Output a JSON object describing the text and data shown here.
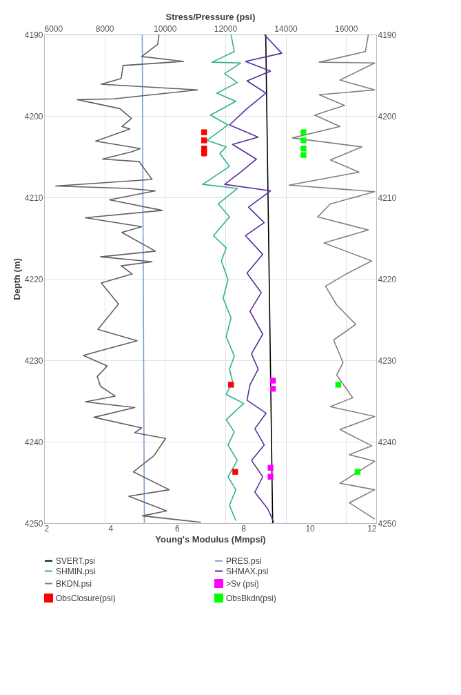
{
  "chart_data": {
    "type": "line",
    "xlabel": "Young's Modulus (Mmpsi)",
    "ylabel": "Depth (m)",
    "x2label": "Stress/Pressure (psi)",
    "xlim": [
      2,
      12
    ],
    "xticks": [
      2,
      4,
      6,
      8,
      10,
      12
    ],
    "x2lim": [
      6000,
      17000
    ],
    "x2ticks": [
      6000,
      8000,
      10000,
      12000,
      14000,
      16000
    ],
    "ylim": [
      4250,
      4190
    ],
    "yticks": [
      4190,
      4200,
      4210,
      4220,
      4230,
      4240,
      4250
    ],
    "y2lim": [
      4250,
      4190
    ],
    "y2ticks": [
      4190,
      4200,
      4210,
      4220,
      4230,
      4240,
      4250
    ],
    "grid": true,
    "legend": "bottom",
    "series": [
      {
        "name": "SVERT.psi",
        "axis": "x2",
        "color": "#000000",
        "x": [
          13340,
          13570
        ],
        "values": [
          4190,
          4250
        ]
      },
      {
        "name": "PRES.psi",
        "axis": "x2",
        "color": "#7f9fc8",
        "x": [
          9250,
          9320
        ],
        "values": [
          4190,
          4250
        ]
      },
      {
        "name": "SHMIN.psi",
        "axis": "x2",
        "color": "#2db38a",
        "x": [
          12190,
          12300,
          11560,
          12510,
          11980,
          12400,
          11720,
          12350,
          11510,
          12090,
          11400,
          12030,
          11820,
          12140,
          11250,
          12400,
          11770,
          12140,
          11610,
          12030,
          11870,
          12090,
          11930,
          12190,
          12030,
          12300,
          12140,
          12240,
          12030,
          12610,
          12030,
          12300,
          12090,
          12400,
          12090,
          12350,
          12140,
          12350
        ],
        "values": [
          4190,
          4192.1,
          4193.4,
          4193.5,
          4194.8,
          4195.9,
          4197.2,
          4198.2,
          4199.9,
          4201.1,
          4203,
          4203.8,
          4204.6,
          4206.2,
          4208.4,
          4208.9,
          4210.8,
          4212.4,
          4214.7,
          4216.2,
          4217.8,
          4220.1,
          4222.4,
          4224.8,
          4227.1,
          4229.5,
          4231.1,
          4232.6,
          4234.2,
          4235.3,
          4237.3,
          4238.8,
          4240.4,
          4242.3,
          4244.3,
          4245.9,
          4247.8,
          4249.7
        ]
      },
      {
        "name": "SHMAX.psi",
        "axis": "x2",
        "color": "#5b2a9e",
        "x": [
          13290,
          13870,
          12670,
          13500,
          12720,
          13350,
          12720,
          12140,
          13090,
          12240,
          13030,
          12510,
          11980,
          13500,
          12770,
          13290,
          12670,
          13240,
          12720,
          13190,
          12820,
          13240,
          12870,
          13090,
          12820,
          12720,
          13350,
          12980,
          13290,
          12870,
          13240,
          12980,
          13400,
          13610
        ],
        "values": [
          4190,
          4192.3,
          4193.3,
          4194.5,
          4195.7,
          4197.2,
          4199.1,
          4201.1,
          4202.6,
          4203.5,
          4205.3,
          4206.9,
          4208.4,
          4209.2,
          4211.2,
          4213.1,
          4214.7,
          4217,
          4219.3,
          4221.7,
          4224,
          4226.8,
          4229.2,
          4231.1,
          4233,
          4234.9,
          4236.5,
          4238.4,
          4240.4,
          4242.3,
          4244.3,
          4246.2,
          4248.2,
          4249.9
        ]
      },
      {
        "name": "BKDN.psi",
        "axis": "x2",
        "color": "#808080",
        "x": [
          16740,
          16640,
          15110,
          16950,
          15800,
          16950,
          15110,
          15950,
          14960,
          15800,
          14220,
          16530,
          15480,
          16430,
          14110,
          16950,
          15480,
          15060,
          16740,
          15270,
          16850,
          16010,
          15320,
          15690,
          16320,
          15590,
          15900,
          15690,
          16220,
          15480,
          16950,
          15800,
          16850,
          16110,
          16950,
          15800,
          16950,
          16110,
          16950
        ],
        "values": [
          4190,
          4192.1,
          4193.4,
          4193.5,
          4195.6,
          4196.8,
          4197.4,
          4198.7,
          4199.9,
          4201.3,
          4202.7,
          4203.8,
          4205.4,
          4206.9,
          4208.5,
          4209.3,
          4210.8,
          4212.4,
          4214,
          4215.6,
          4217.8,
          4219.4,
          4220.9,
          4223.2,
          4225.6,
          4227.5,
          4230.3,
          4231.8,
          4234.6,
          4235.7,
          4236.9,
          4238.5,
          4240.5,
          4241.6,
          4242.4,
          4245.1,
          4245.9,
          4247.5,
          4249.5
        ]
      },
      {
        "name": ">Sv (psi)",
        "type": "scatter",
        "marker": "square",
        "axis": "x2",
        "color": "#ff00ff",
        "x": [
          13580,
          13580,
          13500,
          13500
        ],
        "values": [
          4232.5,
          4233.5,
          4243.2,
          4244.3
        ]
      },
      {
        "name": "ObsClosure(psi)",
        "type": "scatter",
        "marker": "square",
        "axis": "x2",
        "color": "#ff0000",
        "x": [
          11300,
          11300,
          11300,
          11300,
          12190,
          12330
        ],
        "values": [
          4202,
          4203,
          4204,
          4204.6,
          4233,
          4243.7
        ]
      },
      {
        "name": "ObsBkdn(psi)",
        "type": "scatter",
        "marker": "square",
        "axis": "x2",
        "color": "#00ff00",
        "x": [
          14590,
          14590,
          14590,
          14590,
          15740,
          16380
        ],
        "values": [
          4202,
          4203,
          4204,
          4204.8,
          4233,
          4243.7
        ]
      },
      {
        "color": "#606060",
        "x": [
          5.46,
          5.42,
          4.94,
          6.2,
          4.38,
          4.32,
          3.72,
          6.62,
          4.1,
          3.0,
          4.28,
          4.63,
          4.34,
          4.58,
          3.55,
          4.9,
          4.63,
          3.76,
          4.86,
          5.25,
          2.35,
          4.52,
          5.35,
          3.97,
          5.56,
          3.24,
          4.94,
          4.34,
          5.35,
          3.7,
          5.25,
          4.32,
          4.65,
          3.72,
          4.24,
          3.62,
          4.8,
          3.18,
          3.9,
          3.6,
          3.7,
          4.14,
          3.24,
          4.73,
          3.5,
          4.94,
          4.73,
          5.66,
          5.31,
          4.69,
          5.77,
          4.55,
          5.69,
          4.96,
          6.72
        ],
        "values": [
          4190,
          4191.2,
          4192.7,
          4193.3,
          4193.8,
          4195.4,
          4196.1,
          4196.8,
          4197.9,
          4198,
          4199.1,
          4200.3,
          4201.3,
          4201.6,
          4203.1,
          4204,
          4204.4,
          4205.3,
          4205.6,
          4207.8,
          4208.6,
          4208.9,
          4209.2,
          4210.3,
          4211.6,
          4212.5,
          4213.6,
          4214.3,
          4216.6,
          4217.3,
          4217.9,
          4218.4,
          4219.4,
          4220.5,
          4223.1,
          4226.2,
          4227.6,
          4229.4,
          4230.7,
          4232,
          4233.2,
          4234.4,
          4235.1,
          4235.8,
          4237,
          4238.3,
          4238.9,
          4239.6,
          4241.7,
          4243.7,
          4245.9,
          4246.7,
          4248.5,
          4249.1,
          4249.9
        ]
      }
    ]
  }
}
